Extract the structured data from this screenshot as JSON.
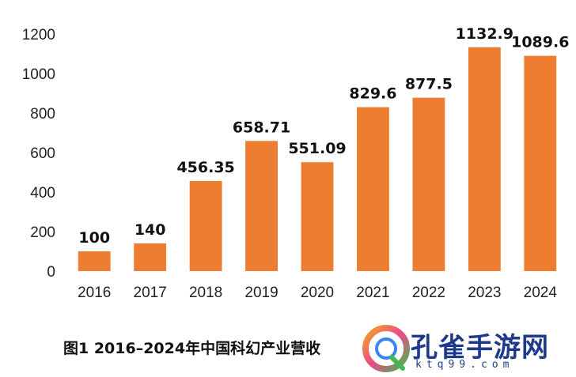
{
  "chart_data": {
    "type": "bar",
    "title": "",
    "xlabel": "",
    "ylabel": "",
    "categories": [
      "2016",
      "2017",
      "2018",
      "2019",
      "2020",
      "2021",
      "2022",
      "2023",
      "2024"
    ],
    "values": [
      100,
      140,
      456.35,
      658.71,
      551.09,
      829.6,
      877.5,
      1132.9,
      1089.6
    ],
    "value_labels": [
      "100",
      "140",
      "456.35",
      "658.71",
      "551.09",
      "829.6",
      "877.5",
      "1132.9",
      "1089.6"
    ],
    "ylim": [
      0,
      1200
    ],
    "yticks": [
      0,
      200,
      400,
      600,
      800,
      1000,
      1200
    ],
    "grid": false,
    "bar_color": "#ED7D31"
  },
  "caption": "图1  2016–2024年中国科幻产业营收",
  "watermark": {
    "text": "孔雀手游网",
    "url": "ktq99.com"
  }
}
